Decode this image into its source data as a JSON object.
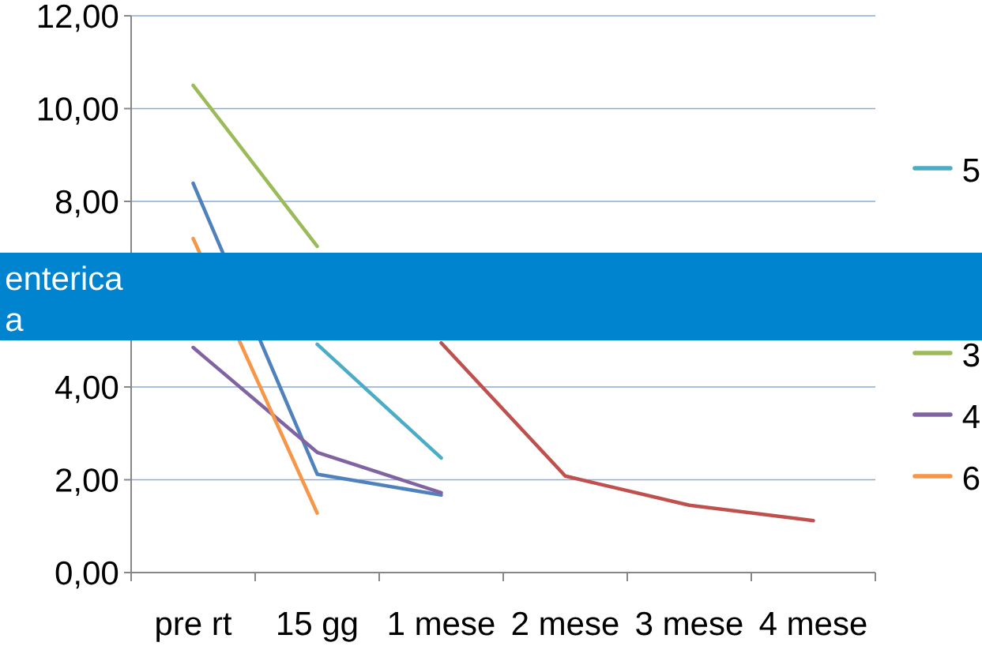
{
  "chart_data": {
    "type": "line",
    "categories": [
      "pre rt",
      "15 gg",
      "1 mese",
      "2 mese",
      "3 mese",
      "4 mese"
    ],
    "series": [
      {
        "name": "5",
        "color": "#4bacc6",
        "values": [
          null,
          4.92,
          2.47,
          null,
          null,
          null
        ]
      },
      {
        "color": "#4f81bd",
        "values": [
          8.39,
          2.12,
          1.67,
          null,
          null,
          null
        ]
      },
      {
        "color": "#c0504d",
        "values": [
          null,
          null,
          4.95,
          2.08,
          1.45,
          1.12
        ]
      },
      {
        "name": "3",
        "color": "#9bbb59",
        "values": [
          10.5,
          7.03,
          null,
          null,
          null,
          null
        ]
      },
      {
        "name": "4",
        "color": "#8064a2",
        "values": [
          4.85,
          2.59,
          1.72,
          null,
          null,
          null
        ]
      },
      {
        "name": "6",
        "color": "#f79646",
        "values": [
          7.2,
          1.28,
          null,
          null,
          null,
          null
        ]
      }
    ],
    "ylim": [
      0,
      12
    ],
    "yticks": [
      {
        "value": 0,
        "label": "0,00"
      },
      {
        "value": 2,
        "label": "2,00"
      },
      {
        "value": 4,
        "label": "4,00"
      },
      {
        "value": 6,
        "label": null
      },
      {
        "value": 8,
        "label": "8,00"
      },
      {
        "value": 10,
        "label": "10,00"
      },
      {
        "value": 12,
        "label": "12,00"
      }
    ],
    "grid": "y",
    "legend": "right",
    "marker": "none",
    "line_style": "solid",
    "annotations": [
      "enterica",
      "a"
    ]
  }
}
